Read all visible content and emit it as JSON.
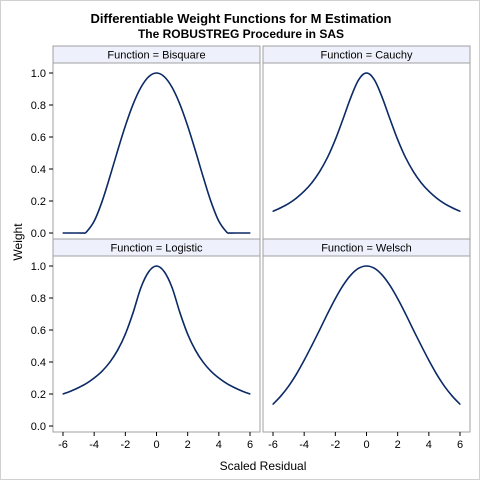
{
  "title": "Differentiable Weight Functions for M Estimation",
  "subtitle": "The ROBUSTREG Procedure in SAS",
  "chart_data": {
    "type": "line",
    "xlabel": "Scaled Residual",
    "ylabel": "Weight",
    "xlim": [
      -6,
      6
    ],
    "ylim": [
      0,
      1
    ],
    "x_ticks": [
      -6,
      -4,
      -2,
      0,
      2,
      4,
      6
    ],
    "y_ticks": [
      0.0,
      0.2,
      0.4,
      0.6,
      0.8,
      1.0
    ],
    "y_tick_labels": [
      "0.0",
      "0.2",
      "0.4",
      "0.6",
      "0.8",
      "1.0"
    ],
    "line_color": "#0b2a66",
    "header_fill": "#eef0fb",
    "grid": false,
    "panels": [
      {
        "label": "Function = Bisquare",
        "x": [
          -6,
          -5.5,
          -5,
          -4.685,
          -4.5,
          -4,
          -3.5,
          -3,
          -2.5,
          -2,
          -1.5,
          -1,
          -0.5,
          0,
          0.5,
          1,
          1.5,
          2,
          2.5,
          3,
          3.5,
          4,
          4.5,
          4.685,
          5,
          5.5,
          6
        ],
        "values": [
          0,
          0,
          0,
          0,
          0.006,
          0.074,
          0.195,
          0.349,
          0.513,
          0.669,
          0.805,
          0.91,
          0.977,
          1.0,
          0.977,
          0.91,
          0.805,
          0.669,
          0.513,
          0.349,
          0.195,
          0.074,
          0.006,
          0,
          0,
          0,
          0
        ]
      },
      {
        "label": "Function = Cauchy",
        "x": [
          -6,
          -5.5,
          -5,
          -4.5,
          -4,
          -3.5,
          -3,
          -2.5,
          -2,
          -1.5,
          -1,
          -0.5,
          0,
          0.5,
          1,
          1.5,
          2,
          2.5,
          3,
          3.5,
          4,
          4.5,
          5,
          5.5,
          6
        ],
        "values": [
          0.136,
          0.158,
          0.184,
          0.218,
          0.261,
          0.315,
          0.385,
          0.473,
          0.584,
          0.714,
          0.849,
          0.958,
          1.0,
          0.958,
          0.849,
          0.714,
          0.584,
          0.473,
          0.385,
          0.315,
          0.261,
          0.218,
          0.184,
          0.158,
          0.136
        ]
      },
      {
        "label": "Function = Logistic",
        "x": [
          -6,
          -5.5,
          -5,
          -4.5,
          -4,
          -3.5,
          -3,
          -2.5,
          -2,
          -1.5,
          -1,
          -0.5,
          0,
          0.5,
          1,
          1.5,
          2,
          2.5,
          3,
          3.5,
          4,
          4.5,
          5,
          5.5,
          6
        ],
        "values": [
          0.2,
          0.218,
          0.24,
          0.266,
          0.3,
          0.342,
          0.398,
          0.473,
          0.574,
          0.709,
          0.865,
          0.964,
          1.0,
          0.964,
          0.865,
          0.709,
          0.574,
          0.473,
          0.398,
          0.342,
          0.3,
          0.266,
          0.24,
          0.218,
          0.2
        ]
      },
      {
        "label": "Function = Welsch",
        "x": [
          -6,
          -5.5,
          -5,
          -4.5,
          -4,
          -3.5,
          -3,
          -2.5,
          -2,
          -1.5,
          -1,
          -0.5,
          0,
          0.5,
          1,
          1.5,
          2,
          2.5,
          3,
          3.5,
          4,
          4.5,
          5,
          5.5,
          6
        ],
        "values": [
          0.136,
          0.187,
          0.249,
          0.324,
          0.411,
          0.505,
          0.602,
          0.702,
          0.796,
          0.879,
          0.944,
          0.986,
          1.0,
          0.986,
          0.944,
          0.879,
          0.796,
          0.702,
          0.602,
          0.505,
          0.411,
          0.324,
          0.249,
          0.187,
          0.136
        ]
      }
    ]
  }
}
